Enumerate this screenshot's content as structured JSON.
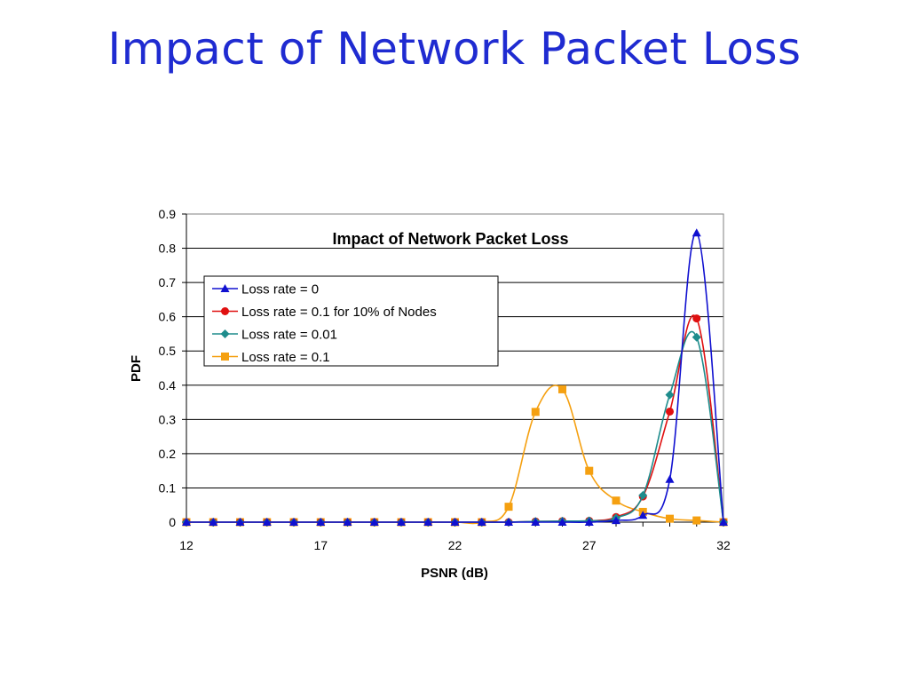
{
  "slide": {
    "title": "Impact of Network Packet Loss"
  },
  "colors": {
    "title": "#1f2bd1"
  },
  "chart_data": {
    "type": "line",
    "title": "Impact of Network Packet Loss",
    "xlabel": "PSNR (dB)",
    "ylabel": "PDF",
    "xlim": [
      12,
      32
    ],
    "ylim": [
      0,
      0.9
    ],
    "xticks": [
      12,
      17,
      22,
      27,
      32
    ],
    "yticks": [
      0,
      0.1,
      0.2,
      0.3,
      0.4,
      0.5,
      0.6,
      0.7,
      0.8,
      0.9
    ],
    "grid": "horizontal",
    "legend_position": "top-left",
    "x": [
      12,
      13,
      14,
      15,
      16,
      17,
      18,
      19,
      20,
      21,
      22,
      23,
      24,
      25,
      26,
      27,
      28,
      29,
      30,
      31,
      32
    ],
    "series": [
      {
        "name": "Loss rate = 0",
        "color": "#1010d0",
        "marker": "triangle",
        "values": [
          0,
          0,
          0,
          0,
          0,
          0,
          0,
          0,
          0,
          0,
          0,
          0,
          0,
          0,
          0,
          0,
          0.005,
          0.02,
          0.125,
          0.845,
          0
        ]
      },
      {
        "name": "Loss rate = 0.1 for 10% of Nodes",
        "color": "#e01010",
        "marker": "circle",
        "values": [
          0,
          0,
          0,
          0,
          0,
          0,
          0,
          0,
          0,
          0,
          0,
          0,
          0,
          0.002,
          0.003,
          0.004,
          0.015,
          0.075,
          0.323,
          0.595,
          0
        ]
      },
      {
        "name": "Loss rate = 0.01",
        "color": "#1e8c8c",
        "marker": "diamond",
        "values": [
          0,
          0,
          0,
          0,
          0,
          0,
          0,
          0,
          0,
          0,
          0,
          0,
          0,
          0.002,
          0.003,
          0.004,
          0.012,
          0.078,
          0.372,
          0.54,
          0
        ]
      },
      {
        "name": "Loss rate = 0.1",
        "color": "#f5a010",
        "marker": "square",
        "values": [
          0,
          0,
          0,
          0,
          0,
          0,
          0,
          0,
          0,
          0,
          0,
          0,
          0.045,
          0.322,
          0.388,
          0.15,
          0.063,
          0.03,
          0.01,
          0.005,
          0
        ]
      }
    ]
  }
}
